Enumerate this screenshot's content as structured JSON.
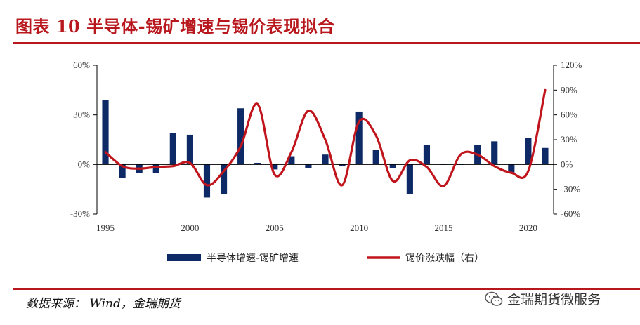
{
  "header": {
    "title": "图表 10 半导体-锡矿增速与锡价表现拟合"
  },
  "footer": {
    "source": "数据来源：  Wind，金瑞期货",
    "watermark": "金瑞期货微服务"
  },
  "colors": {
    "bar": "#0d2a66",
    "line": "#c0151c",
    "accent": "#b8171e"
  },
  "chart_data": {
    "type": "bar+line",
    "x": [
      1995,
      1996,
      1997,
      1998,
      1999,
      2000,
      2001,
      2002,
      2003,
      2004,
      2005,
      2006,
      2007,
      2008,
      2009,
      2010,
      2011,
      2012,
      2013,
      2014,
      2015,
      2016,
      2017,
      2018,
      2019,
      2020,
      2021
    ],
    "series": [
      {
        "name": "半导体增速-锡矿增速",
        "type": "bar",
        "axis": "left",
        "values": [
          39,
          -8,
          -5,
          -5,
          19,
          18,
          -20,
          -18,
          34,
          1,
          -3,
          5,
          -2,
          6,
          -1,
          32,
          9,
          -2,
          -18,
          12,
          0,
          0,
          12,
          14,
          -5,
          16,
          10
        ]
      },
      {
        "name": "锡价涨跌幅（右）",
        "type": "line",
        "axis": "right",
        "values": [
          15,
          -2,
          -5,
          -3,
          -2,
          2,
          -25,
          -8,
          22,
          73,
          -12,
          15,
          65,
          30,
          -25,
          52,
          35,
          -20,
          5,
          -3,
          -26,
          12,
          12,
          -2,
          -10,
          -8,
          90
        ]
      }
    ],
    "left_axis": {
      "ylim": [
        -30,
        60
      ],
      "ticks": [
        -30,
        0,
        30,
        60
      ],
      "tick_labels": [
        "-30%",
        "0%",
        "30%",
        "60%"
      ]
    },
    "right_axis": {
      "ylim": [
        -60,
        120
      ],
      "ticks": [
        -60,
        -30,
        0,
        30,
        60,
        90,
        120
      ],
      "tick_labels": [
        "-60%",
        "-30%",
        "0%",
        "30%",
        "60%",
        "90%",
        "120%"
      ]
    },
    "x_ticks": [
      1995,
      2000,
      2005,
      2010,
      2015,
      2020
    ],
    "legend": {
      "placement": "bottom"
    },
    "grid": false
  }
}
